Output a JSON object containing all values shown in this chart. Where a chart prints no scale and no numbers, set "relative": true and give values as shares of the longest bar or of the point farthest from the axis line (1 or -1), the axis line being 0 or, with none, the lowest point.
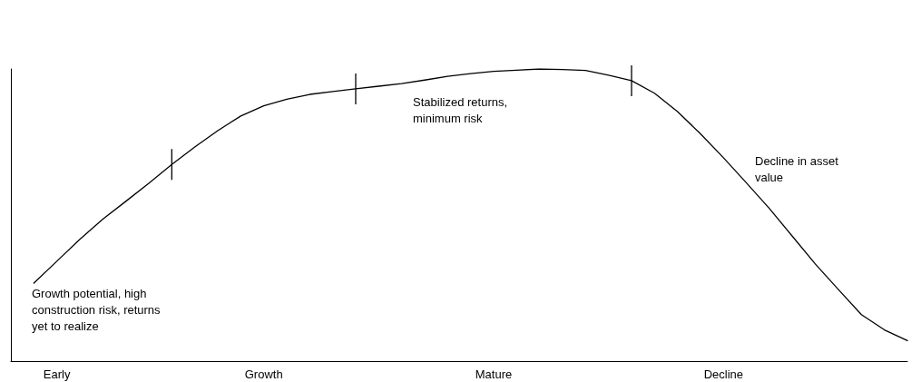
{
  "chart_data": {
    "type": "line",
    "relative": true,
    "categories": [
      null,
      null,
      "Early",
      null,
      null,
      null,
      null,
      null,
      null,
      null,
      null,
      "Growth",
      null,
      null,
      null,
      null,
      null,
      null,
      null,
      null,
      null,
      "Mature",
      null,
      null,
      null,
      null,
      null,
      null,
      null,
      null,
      null,
      "Decline",
      null,
      null,
      null,
      null,
      null,
      null,
      null,
      null
    ],
    "grid": false,
    "series": [
      {
        "color": "#000000",
        "marker": "none",
        "values": [
          null,
          0.267,
          0.342,
          0.417,
          0.486,
          0.547,
          0.609,
          0.673,
          0.733,
          0.789,
          0.839,
          0.874,
          0.896,
          0.913,
          0.923,
          0.932,
          0.941,
          0.95,
          0.962,
          0.975,
          0.984,
          0.992,
          0.996,
          1,
          0.998,
          0.995,
          0.979,
          0.96,
          0.917,
          0.854,
          0.778,
          0.696,
          0.61,
          0.522,
          0.427,
          0.332,
          0.245,
          0.159,
          0.107,
          0.07
        ]
      }
    ],
    "annotations": [
      "Growth potential, high\nconstruction risk, returns\nyet to realize",
      "Stabilized returns,\nminimum risk",
      "Decline in asset\nvalue"
    ]
  }
}
